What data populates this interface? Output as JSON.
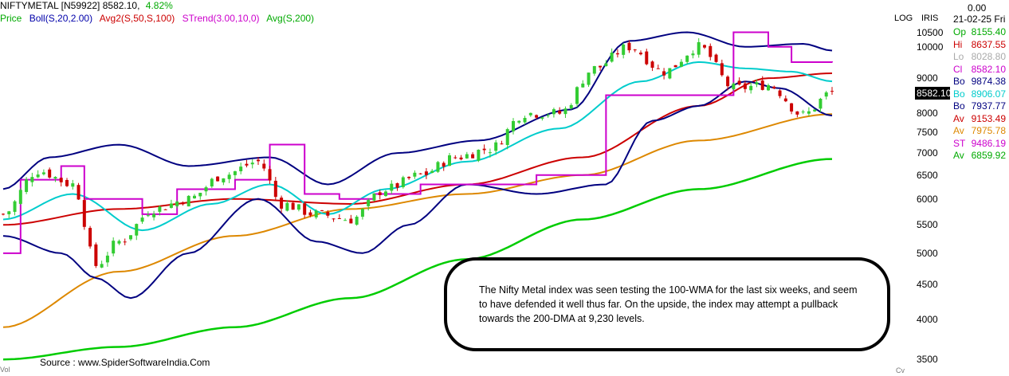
{
  "header": {
    "instrument": "NIFTYMETAL [N59922]",
    "last": "8582.10,",
    "change_pct": "4.82%",
    "change_color": "#00aa00"
  },
  "legend": [
    {
      "label": "Price",
      "color": "#00aa00"
    },
    {
      "label": "Boll(S,20,2.00)",
      "color": "#0000aa"
    },
    {
      "label": "Avg2(S,50,S,100)",
      "color": "#cc0000"
    },
    {
      "label": "STrend(3.00,10,0)",
      "color": "#cc00cc"
    },
    {
      "label": "Avg(S,200)",
      "color": "#00aa00"
    }
  ],
  "badges": {
    "log": "LOG",
    "iris": "IRIS",
    "zero": "0.00",
    "date": "21-02-25 Fri"
  },
  "side_panel": [
    {
      "k": "Op",
      "v": "8155.40",
      "color": "#00aa00"
    },
    {
      "k": "Hi",
      "v": "8637.55",
      "color": "#cc0000"
    },
    {
      "k": "Lo",
      "v": "8028.80",
      "color": "#aaaaaa"
    },
    {
      "k": "Cl",
      "v": "8582.10",
      "color": "#cc00cc"
    },
    {
      "k": "Bo",
      "v": "9874.38",
      "color": "#000080"
    },
    {
      "k": "Bo",
      "v": "8906.07",
      "color": "#00cccc"
    },
    {
      "k": "Bo",
      "v": "7937.77",
      "color": "#000080"
    },
    {
      "k": "Av",
      "v": "9153.49",
      "color": "#cc0000"
    },
    {
      "k": "Av",
      "v": "7975.78",
      "color": "#dd8800"
    },
    {
      "k": "ST",
      "v": "9486.19",
      "color": "#cc00cc"
    },
    {
      "k": "Av",
      "v": "6859.92",
      "color": "#00aa00"
    }
  ],
  "current_price_label": "8582.10",
  "annotation": "The Nifty Metal index was seen testing the 100-WMA for the last six weeks, and seem to have defended it well thus far. On the upside, the index may attempt a pullback towards the 200-DMA at 9,230 levels.",
  "source": "Source : www.SpiderSoftwareIndia.Com",
  "edge_left": "Vol",
  "edge_right": "Cv",
  "chart_data": {
    "type": "line",
    "scale": "log",
    "ylim": [
      3400,
      10800
    ],
    "yticks": [
      10500,
      10000,
      9000,
      8000,
      7500,
      7000,
      6500,
      6000,
      5500,
      5000,
      4500,
      4000,
      3500
    ],
    "n_bars": 150,
    "colors": {
      "up": "#33cc33",
      "down": "#cc0000",
      "boll_outer": "#000080",
      "boll_mid": "#00cccc",
      "avg50": "#cc0000",
      "avg100": "#dd8800",
      "strend": "#cc00cc",
      "avg200": "#00cc00"
    },
    "close_anchors": [
      [
        0,
        5700
      ],
      [
        6,
        6600
      ],
      [
        12,
        6300
      ],
      [
        16,
        4800
      ],
      [
        20,
        5200
      ],
      [
        26,
        5800
      ],
      [
        32,
        6000
      ],
      [
        38,
        6500
      ],
      [
        44,
        6800
      ],
      [
        48,
        5900
      ],
      [
        54,
        5700
      ],
      [
        60,
        5600
      ],
      [
        66,
        6200
      ],
      [
        72,
        6500
      ],
      [
        78,
        6900
      ],
      [
        84,
        7100
      ],
      [
        90,
        8000
      ],
      [
        96,
        8000
      ],
      [
        102,
        9300
      ],
      [
        108,
        10000
      ],
      [
        114,
        9200
      ],
      [
        120,
        10000
      ],
      [
        126,
        8700
      ],
      [
        132,
        8800
      ],
      [
        138,
        7950
      ],
      [
        143,
        8582
      ]
    ],
    "avg200_anchors": [
      [
        0,
        3500
      ],
      [
        20,
        3650
      ],
      [
        40,
        3900
      ],
      [
        60,
        4300
      ],
      [
        80,
        4900
      ],
      [
        100,
        5600
      ],
      [
        120,
        6200
      ],
      [
        143,
        6860
      ]
    ],
    "avg100_anchors": [
      [
        0,
        3900
      ],
      [
        20,
        4700
      ],
      [
        40,
        5300
      ],
      [
        60,
        5800
      ],
      [
        80,
        6100
      ],
      [
        100,
        6500
      ],
      [
        120,
        7300
      ],
      [
        143,
        7975
      ]
    ],
    "avg50_anchors": [
      [
        0,
        5500
      ],
      [
        20,
        5800
      ],
      [
        40,
        6000
      ],
      [
        60,
        5900
      ],
      [
        80,
        6300
      ],
      [
        100,
        6900
      ],
      [
        120,
        8200
      ],
      [
        132,
        9000
      ],
      [
        143,
        9150
      ]
    ],
    "boll_mid_anchors": [
      [
        0,
        5600
      ],
      [
        12,
        6100
      ],
      [
        24,
        5400
      ],
      [
        36,
        5900
      ],
      [
        46,
        6300
      ],
      [
        56,
        5700
      ],
      [
        66,
        6200
      ],
      [
        80,
        6800
      ],
      [
        96,
        7600
      ],
      [
        110,
        8900
      ],
      [
        120,
        9500
      ],
      [
        128,
        9300
      ],
      [
        136,
        9200
      ],
      [
        143,
        8906
      ]
    ],
    "boll_up_anchors": [
      [
        0,
        6200
      ],
      [
        8,
        6900
      ],
      [
        20,
        7200
      ],
      [
        32,
        6700
      ],
      [
        46,
        6900
      ],
      [
        56,
        6300
      ],
      [
        68,
        7000
      ],
      [
        82,
        7300
      ],
      [
        98,
        8100
      ],
      [
        108,
        10200
      ],
      [
        118,
        10500
      ],
      [
        128,
        10000
      ],
      [
        138,
        10100
      ],
      [
        143,
        9874
      ]
    ],
    "boll_lo_anchors": [
      [
        0,
        5300
      ],
      [
        10,
        5000
      ],
      [
        16,
        4600
      ],
      [
        22,
        4300
      ],
      [
        32,
        5000
      ],
      [
        44,
        6000
      ],
      [
        54,
        5200
      ],
      [
        62,
        5000
      ],
      [
        70,
        5500
      ],
      [
        80,
        6300
      ],
      [
        92,
        6100
      ],
      [
        104,
        6300
      ],
      [
        112,
        7800
      ],
      [
        120,
        8200
      ],
      [
        128,
        8900
      ],
      [
        134,
        8700
      ],
      [
        143,
        7937
      ]
    ],
    "strend_anchors": [
      [
        0,
        5000
      ],
      [
        3,
        6400
      ],
      [
        10,
        6700
      ],
      [
        14,
        6000
      ],
      [
        24,
        5700
      ],
      [
        30,
        6200
      ],
      [
        40,
        6400
      ],
      [
        46,
        7200
      ],
      [
        52,
        6100
      ],
      [
        58,
        6000
      ],
      [
        64,
        6100
      ],
      [
        72,
        6300
      ],
      [
        80,
        6300
      ],
      [
        92,
        6500
      ],
      [
        104,
        8500
      ],
      [
        118,
        8500
      ],
      [
        126,
        10500
      ],
      [
        132,
        10000
      ],
      [
        136,
        9500
      ],
      [
        143,
        9486
      ]
    ]
  }
}
